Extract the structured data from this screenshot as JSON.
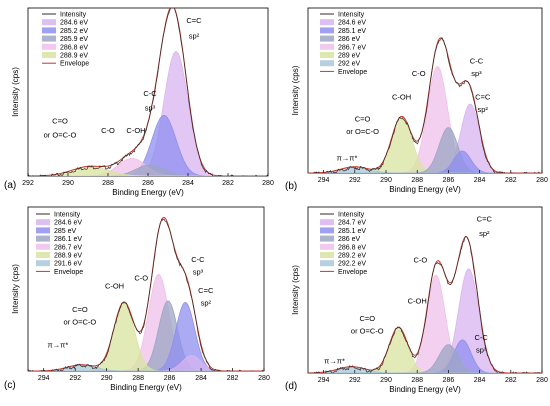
{
  "chart_data": [
    {
      "panel": "(a)",
      "type": "line",
      "xlabel": "Binding Energy (eV)",
      "ylabel": "Intensity (cps)",
      "xlim": [
        292,
        280
      ],
      "xticks": [
        292,
        290,
        288,
        286,
        284,
        282,
        280
      ],
      "legend": [
        "Intensity",
        "284.6 eV",
        "285.2 eV",
        "285.9 eV",
        "286.8 eV",
        "288.9 eV",
        "Envelope"
      ],
      "peaks": [
        {
          "center": 284.6,
          "height": 0.78,
          "sigma": 0.6,
          "color": "#d8b4f0",
          "label": "284.6 eV"
        },
        {
          "center": 285.2,
          "height": 0.38,
          "sigma": 0.6,
          "color": "#8f8ff0",
          "label": "285.2 eV"
        },
        {
          "center": 285.9,
          "height": 0.07,
          "sigma": 0.7,
          "color": "#9ca6c4",
          "label": "285.9 eV"
        },
        {
          "center": 286.8,
          "height": 0.11,
          "sigma": 0.7,
          "color": "#efc0ea",
          "label": "286.8 eV"
        },
        {
          "center": 288.9,
          "height": 0.06,
          "sigma": 0.9,
          "color": "#d8e4a0",
          "label": "288.9 eV"
        }
      ],
      "annotations": [
        {
          "text": "C=C",
          "x": 283.7,
          "y": 0.96
        },
        {
          "text": "sp²",
          "x": 283.7,
          "y": 0.86
        },
        {
          "text": "C-C",
          "x": 285.9,
          "y": 0.5
        },
        {
          "text": "sp³",
          "x": 285.9,
          "y": 0.41
        },
        {
          "text": "C-OH",
          "x": 286.6,
          "y": 0.27
        },
        {
          "text": "C-O",
          "x": 288.0,
          "y": 0.27
        },
        {
          "text": "C=O",
          "x": 290.4,
          "y": 0.33
        },
        {
          "text": "or O=C-O",
          "x": 290.4,
          "y": 0.24
        }
      ]
    },
    {
      "panel": "(b)",
      "type": "line",
      "xlabel": "Binding Energy (eV)",
      "ylabel": "Intensity (cps)",
      "xlim": [
        295,
        280
      ],
      "xticks": [
        294,
        292,
        290,
        288,
        286,
        284,
        282,
        280
      ],
      "legend": [
        "Intensity",
        "284.6 eV",
        "285.1 eV",
        "286 eV",
        "286.7 eV",
        "289 eV",
        "292 eV",
        "Envelope"
      ],
      "peaks": [
        {
          "center": 284.6,
          "height": 0.44,
          "sigma": 0.6,
          "color": "#d8b4f0",
          "label": "284.6 eV"
        },
        {
          "center": 285.1,
          "height": 0.14,
          "sigma": 0.55,
          "color": "#8f8ff0",
          "label": "285.1 eV"
        },
        {
          "center": 286.0,
          "height": 0.29,
          "sigma": 0.6,
          "color": "#9ca6c4",
          "label": "286 eV"
        },
        {
          "center": 286.7,
          "height": 0.68,
          "sigma": 0.65,
          "color": "#efc0ea",
          "label": "286.7 eV"
        },
        {
          "center": 289.0,
          "height": 0.36,
          "sigma": 0.65,
          "color": "#d8e4a0",
          "label": "289 eV"
        },
        {
          "center": 292.0,
          "height": 0.04,
          "sigma": 0.9,
          "color": "#a8c8d8",
          "label": "292 eV"
        }
      ],
      "annotations": [
        {
          "text": "C-C",
          "x": 284.2,
          "y": 0.7
        },
        {
          "text": "sp³",
          "x": 284.2,
          "y": 0.62
        },
        {
          "text": "C=C",
          "x": 283.8,
          "y": 0.47
        },
        {
          "text": "sp²",
          "x": 283.8,
          "y": 0.39
        },
        {
          "text": "C-O",
          "x": 287.9,
          "y": 0.62
        },
        {
          "text": "C-OH",
          "x": 289.0,
          "y": 0.47
        },
        {
          "text": "C=O",
          "x": 291.5,
          "y": 0.33
        },
        {
          "text": "or O=C-O",
          "x": 291.5,
          "y": 0.25
        },
        {
          "text": "π→π*",
          "x": 292.5,
          "y": 0.08
        }
      ]
    },
    {
      "panel": "(c)",
      "type": "line",
      "xlabel": "Binding Energy (eV)",
      "ylabel": "Intensity (cps)",
      "xlim": [
        295,
        280
      ],
      "xticks": [
        294,
        292,
        290,
        288,
        286,
        284,
        282,
        280
      ],
      "legend": [
        "Intensity",
        "284.6 eV",
        "285 eV",
        "286.1 eV",
        "286.7 eV",
        "288.9 eV",
        "291.6 eV",
        "Envelope"
      ],
      "peaks": [
        {
          "center": 284.6,
          "height": 0.1,
          "sigma": 0.6,
          "color": "#d8b4f0",
          "label": "284.6 eV"
        },
        {
          "center": 285.0,
          "height": 0.44,
          "sigma": 0.6,
          "color": "#8f8ff0",
          "label": "285 eV"
        },
        {
          "center": 286.1,
          "height": 0.45,
          "sigma": 0.6,
          "color": "#9ca6c4",
          "label": "286.1 eV"
        },
        {
          "center": 286.7,
          "height": 0.62,
          "sigma": 0.65,
          "color": "#efc0ea",
          "label": "286.7 eV"
        },
        {
          "center": 288.9,
          "height": 0.44,
          "sigma": 0.65,
          "color": "#d8e4a0",
          "label": "288.9 eV"
        },
        {
          "center": 291.6,
          "height": 0.04,
          "sigma": 0.9,
          "color": "#a8c8d8",
          "label": "291.6 eV"
        }
      ],
      "annotations": [
        {
          "text": "C-C",
          "x": 284.2,
          "y": 0.7
        },
        {
          "text": "sp³",
          "x": 284.2,
          "y": 0.62
        },
        {
          "text": "C=C",
          "x": 283.7,
          "y": 0.5
        },
        {
          "text": "sp²",
          "x": 283.7,
          "y": 0.42
        },
        {
          "text": "C-O",
          "x": 287.8,
          "y": 0.58
        },
        {
          "text": "C-OH",
          "x": 289.5,
          "y": 0.53
        },
        {
          "text": "C=O",
          "x": 291.7,
          "y": 0.38
        },
        {
          "text": "or O=C-O",
          "x": 291.7,
          "y": 0.3
        },
        {
          "text": "π→π*",
          "x": 293.1,
          "y": 0.15
        }
      ]
    },
    {
      "panel": "(d)",
      "type": "line",
      "xlabel": "Binding Energy (eV)",
      "ylabel": "Intensity (cps)",
      "xlim": [
        295,
        280
      ],
      "xticks": [
        294,
        292,
        290,
        288,
        286,
        284,
        282,
        280
      ],
      "legend": [
        "Intensity",
        "284.7 eV",
        "285.1 eV",
        "286 eV",
        "286.8 eV",
        "289.2 eV",
        "292.2 eV",
        "Envelope"
      ],
      "peaks": [
        {
          "center": 284.7,
          "height": 0.66,
          "sigma": 0.65,
          "color": "#d8b4f0",
          "label": "284.7 eV"
        },
        {
          "center": 285.1,
          "height": 0.21,
          "sigma": 0.55,
          "color": "#8f8ff0",
          "label": "285.1 eV"
        },
        {
          "center": 286.0,
          "height": 0.18,
          "sigma": 0.6,
          "color": "#9ca6c4",
          "label": "286 eV"
        },
        {
          "center": 286.8,
          "height": 0.62,
          "sigma": 0.6,
          "color": "#efc0ea",
          "label": "286.8 eV"
        },
        {
          "center": 289.2,
          "height": 0.29,
          "sigma": 0.6,
          "color": "#d8e4a0",
          "label": "289.2 eV"
        },
        {
          "center": 292.2,
          "height": 0.04,
          "sigma": 0.9,
          "color": "#a8c8d8",
          "label": "292.2 eV"
        }
      ],
      "annotations": [
        {
          "text": "C=C",
          "x": 283.7,
          "y": 0.96
        },
        {
          "text": "sp²",
          "x": 283.7,
          "y": 0.87
        },
        {
          "text": "C-O",
          "x": 287.8,
          "y": 0.7
        },
        {
          "text": "C-OH",
          "x": 288.0,
          "y": 0.44
        },
        {
          "text": "C-C",
          "x": 283.9,
          "y": 0.21
        },
        {
          "text": "sp³",
          "x": 283.9,
          "y": 0.13
        },
        {
          "text": "C=O",
          "x": 291.2,
          "y": 0.33
        },
        {
          "text": "or O=C-O",
          "x": 291.2,
          "y": 0.25
        },
        {
          "text": "π→π*",
          "x": 293.3,
          "y": 0.06
        }
      ]
    }
  ]
}
